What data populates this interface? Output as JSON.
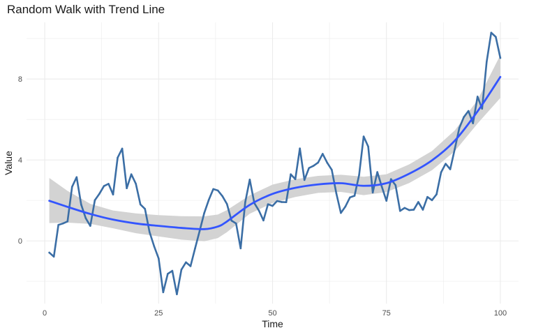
{
  "chart_data": {
    "type": "line",
    "title": "Random Walk with Trend Line",
    "xlabel": "Time",
    "ylabel": "Value",
    "xlim": [
      1,
      100
    ],
    "ylim": [
      -3.1,
      10.8
    ],
    "x_ticks": [
      0,
      25,
      50,
      75,
      100
    ],
    "y_ticks": [
      0,
      4,
      8
    ],
    "grid": true,
    "legend": "none",
    "colors": {
      "series": "#3B6EA5",
      "trend": "#3355FF",
      "ribbon": "#D3D3D3",
      "grid": "#EBEBEB"
    },
    "series": [
      {
        "values": [
          [
            1,
            -0.58
          ],
          [
            2,
            -0.78
          ],
          [
            3,
            0.79
          ],
          [
            4,
            0.86
          ],
          [
            5,
            0.96
          ],
          [
            6,
            2.67
          ],
          [
            7,
            3.15
          ],
          [
            8,
            1.79
          ],
          [
            9,
            1.12
          ],
          [
            10,
            0.74
          ],
          [
            11,
            2.01
          ],
          [
            12,
            2.33
          ],
          [
            13,
            2.71
          ],
          [
            14,
            2.82
          ],
          [
            15,
            2.29
          ],
          [
            16,
            4.11
          ],
          [
            17,
            4.56
          ],
          [
            18,
            2.6
          ],
          [
            19,
            3.29
          ],
          [
            20,
            2.82
          ],
          [
            21,
            1.8
          ],
          [
            22,
            1.58
          ],
          [
            23,
            0.44
          ],
          [
            24,
            -0.26
          ],
          [
            25,
            -0.87
          ],
          [
            26,
            -2.54
          ],
          [
            27,
            -1.63
          ],
          [
            28,
            -1.48
          ],
          [
            29,
            -2.64
          ],
          [
            30,
            -1.42
          ],
          [
            31,
            -1.06
          ],
          [
            32,
            -1.25
          ],
          [
            33,
            -0.37
          ],
          [
            34,
            0.49
          ],
          [
            35,
            1.37
          ],
          [
            36,
            2.02
          ],
          [
            37,
            2.56
          ],
          [
            38,
            2.49
          ],
          [
            39,
            2.21
          ],
          [
            40,
            1.82
          ],
          [
            41,
            1.0
          ],
          [
            42,
            0.86
          ],
          [
            43,
            -0.37
          ],
          [
            44,
            1.9
          ],
          [
            45,
            3.03
          ],
          [
            46,
            1.87
          ],
          [
            47,
            1.5
          ],
          [
            48,
            1.01
          ],
          [
            49,
            1.81
          ],
          [
            50,
            1.73
          ],
          [
            51,
            1.97
          ],
          [
            52,
            1.92
          ],
          [
            53,
            1.91
          ],
          [
            54,
            3.29
          ],
          [
            55,
            3.05
          ],
          [
            56,
            4.57
          ],
          [
            57,
            3.01
          ],
          [
            58,
            3.6
          ],
          [
            59,
            3.71
          ],
          [
            60,
            3.87
          ],
          [
            61,
            4.3
          ],
          [
            62,
            3.86
          ],
          [
            63,
            3.51
          ],
          [
            64,
            2.35
          ],
          [
            65,
            1.38
          ],
          [
            66,
            1.7
          ],
          [
            67,
            2.15
          ],
          [
            68,
            2.23
          ],
          [
            69,
            3.25
          ],
          [
            70,
            5.16
          ],
          [
            71,
            4.66
          ],
          [
            72,
            2.39
          ],
          [
            73,
            3.4
          ],
          [
            74,
            2.67
          ],
          [
            75,
            1.98
          ],
          [
            76,
            3.05
          ],
          [
            77,
            2.75
          ],
          [
            78,
            1.48
          ],
          [
            79,
            1.63
          ],
          [
            80,
            1.52
          ],
          [
            81,
            1.54
          ],
          [
            82,
            1.92
          ],
          [
            83,
            1.54
          ],
          [
            84,
            2.17
          ],
          [
            85,
            2.01
          ],
          [
            86,
            2.3
          ],
          [
            87,
            3.39
          ],
          [
            88,
            3.81
          ],
          [
            89,
            3.54
          ],
          [
            90,
            4.54
          ],
          [
            91,
            5.58
          ],
          [
            92,
            6.12
          ],
          [
            93,
            6.42
          ],
          [
            94,
            5.81
          ],
          [
            95,
            7.13
          ],
          [
            96,
            6.53
          ],
          [
            97,
            8.85
          ],
          [
            98,
            10.29
          ],
          [
            99,
            10.08
          ],
          [
            100,
            9.04
          ]
        ]
      }
    ],
    "trend": [
      [
        1,
        1.98
      ],
      [
        5,
        1.68
      ],
      [
        10,
        1.33
      ],
      [
        15,
        1.05
      ],
      [
        20,
        0.86
      ],
      [
        25,
        0.74
      ],
      [
        30,
        0.64
      ],
      [
        35,
        0.58
      ],
      [
        38,
        0.71
      ],
      [
        40,
        0.96
      ],
      [
        45,
        1.78
      ],
      [
        50,
        2.32
      ],
      [
        55,
        2.62
      ],
      [
        60,
        2.79
      ],
      [
        65,
        2.85
      ],
      [
        70,
        2.72
      ],
      [
        75,
        2.85
      ],
      [
        80,
        3.32
      ],
      [
        85,
        3.98
      ],
      [
        90,
        4.95
      ],
      [
        95,
        6.4
      ],
      [
        100,
        8.1
      ]
    ],
    "ribbon": [
      [
        1,
        0.88,
        3.11
      ],
      [
        5,
        0.9,
        2.47
      ],
      [
        10,
        0.84,
        1.83
      ],
      [
        15,
        0.62,
        1.5
      ],
      [
        20,
        0.38,
        1.36
      ],
      [
        25,
        0.22,
        1.27
      ],
      [
        30,
        0.06,
        1.22
      ],
      [
        35,
        -0.02,
        1.21
      ],
      [
        38,
        0.14,
        1.3
      ],
      [
        40,
        0.43,
        1.52
      ],
      [
        45,
        1.34,
        2.25
      ],
      [
        50,
        1.87,
        2.78
      ],
      [
        55,
        2.17,
        3.05
      ],
      [
        60,
        2.37,
        3.21
      ],
      [
        65,
        2.42,
        3.27
      ],
      [
        70,
        2.26,
        3.17
      ],
      [
        75,
        2.41,
        3.29
      ],
      [
        80,
        2.86,
        3.78
      ],
      [
        85,
        3.49,
        4.44
      ],
      [
        90,
        4.43,
        5.46
      ],
      [
        95,
        5.8,
        6.96
      ],
      [
        100,
        7.06,
        9.18
      ]
    ]
  }
}
